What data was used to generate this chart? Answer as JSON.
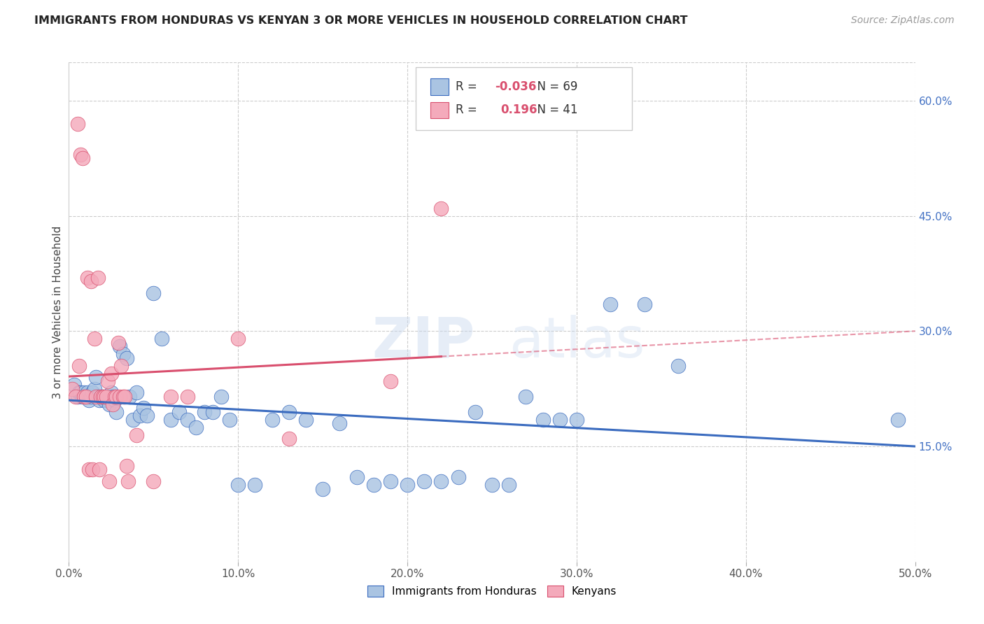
{
  "title": "IMMIGRANTS FROM HONDURAS VS KENYAN 3 OR MORE VEHICLES IN HOUSEHOLD CORRELATION CHART",
  "source": "Source: ZipAtlas.com",
  "ylabel": "3 or more Vehicles in Household",
  "xlim": [
    0.0,
    0.5
  ],
  "ylim": [
    0.0,
    0.65
  ],
  "xticks": [
    0.0,
    0.1,
    0.2,
    0.3,
    0.4,
    0.5
  ],
  "yticks_right": [
    0.15,
    0.3,
    0.45,
    0.6
  ],
  "blue_R": -0.036,
  "blue_N": 69,
  "pink_R": 0.196,
  "pink_N": 41,
  "legend_labels": [
    "Immigrants from Honduras",
    "Kenyans"
  ],
  "blue_color": "#aac4e2",
  "pink_color": "#f4aabb",
  "blue_line_color": "#3a6bbf",
  "pink_line_color": "#d94f6e",
  "watermark": "ZIPatlas",
  "blue_points_x": [
    0.003,
    0.005,
    0.006,
    0.007,
    0.008,
    0.009,
    0.01,
    0.011,
    0.012,
    0.013,
    0.014,
    0.015,
    0.016,
    0.017,
    0.018,
    0.019,
    0.02,
    0.021,
    0.022,
    0.023,
    0.024,
    0.025,
    0.026,
    0.027,
    0.028,
    0.03,
    0.032,
    0.034,
    0.036,
    0.038,
    0.04,
    0.042,
    0.044,
    0.046,
    0.05,
    0.055,
    0.06,
    0.065,
    0.07,
    0.075,
    0.08,
    0.085,
    0.09,
    0.095,
    0.1,
    0.11,
    0.12,
    0.13,
    0.14,
    0.15,
    0.16,
    0.17,
    0.18,
    0.19,
    0.2,
    0.21,
    0.22,
    0.23,
    0.24,
    0.25,
    0.26,
    0.27,
    0.28,
    0.29,
    0.3,
    0.32,
    0.34,
    0.36,
    0.49
  ],
  "blue_points_y": [
    0.23,
    0.215,
    0.22,
    0.22,
    0.215,
    0.22,
    0.215,
    0.22,
    0.21,
    0.215,
    0.22,
    0.225,
    0.24,
    0.215,
    0.21,
    0.215,
    0.215,
    0.21,
    0.215,
    0.21,
    0.205,
    0.22,
    0.215,
    0.21,
    0.195,
    0.28,
    0.27,
    0.265,
    0.215,
    0.185,
    0.22,
    0.19,
    0.2,
    0.19,
    0.35,
    0.29,
    0.185,
    0.195,
    0.185,
    0.175,
    0.195,
    0.195,
    0.215,
    0.185,
    0.1,
    0.1,
    0.185,
    0.195,
    0.185,
    0.095,
    0.18,
    0.11,
    0.1,
    0.105,
    0.1,
    0.105,
    0.105,
    0.11,
    0.195,
    0.1,
    0.1,
    0.215,
    0.185,
    0.185,
    0.185,
    0.335,
    0.335,
    0.255,
    0.185
  ],
  "pink_points_x": [
    0.002,
    0.004,
    0.005,
    0.006,
    0.007,
    0.008,
    0.009,
    0.01,
    0.011,
    0.012,
    0.013,
    0.014,
    0.015,
    0.016,
    0.017,
    0.018,
    0.019,
    0.02,
    0.021,
    0.022,
    0.023,
    0.024,
    0.025,
    0.026,
    0.027,
    0.028,
    0.029,
    0.03,
    0.031,
    0.032,
    0.033,
    0.034,
    0.035,
    0.04,
    0.05,
    0.06,
    0.07,
    0.1,
    0.13,
    0.19,
    0.22
  ],
  "pink_points_y": [
    0.225,
    0.215,
    0.57,
    0.255,
    0.53,
    0.525,
    0.215,
    0.215,
    0.37,
    0.12,
    0.365,
    0.12,
    0.29,
    0.215,
    0.37,
    0.12,
    0.215,
    0.215,
    0.215,
    0.215,
    0.235,
    0.105,
    0.245,
    0.205,
    0.215,
    0.215,
    0.285,
    0.215,
    0.255,
    0.215,
    0.215,
    0.125,
    0.105,
    0.165,
    0.105,
    0.215,
    0.215,
    0.29,
    0.16,
    0.235,
    0.46
  ]
}
